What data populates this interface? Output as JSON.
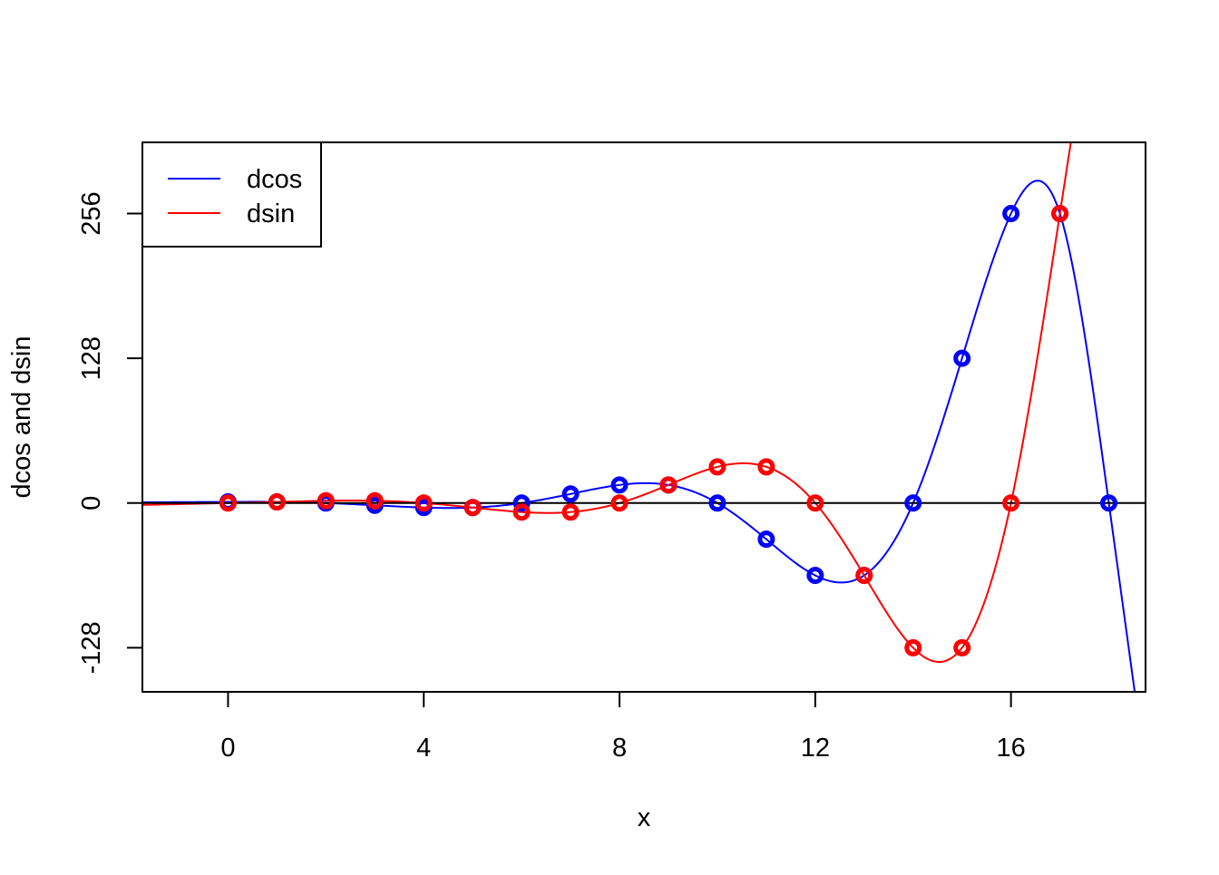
{
  "chart_data": {
    "type": "line",
    "title": "",
    "xlabel": "x",
    "ylabel": "dcos and dsin",
    "xlim": [
      -1.75,
      18.75
    ],
    "ylim": [
      -167,
      319
    ],
    "x_ticks": [
      "0",
      "4",
      "8",
      "12",
      "16"
    ],
    "x_tick_values": [
      0,
      4,
      8,
      12,
      16
    ],
    "y_ticks": [
      "-128",
      "0",
      "128",
      "256"
    ],
    "y_tick_values": [
      -128,
      0,
      128,
      256
    ],
    "grid": false,
    "hline": 0,
    "legend_position": "top-left",
    "series": [
      {
        "name": "dcos",
        "color": "#0000ff",
        "points": {
          "x": [
            0,
            1,
            2,
            3,
            4,
            5,
            6,
            7,
            8,
            9,
            10,
            11,
            12,
            13,
            14,
            15,
            16,
            17,
            18
          ],
          "y": [
            1,
            1,
            0,
            -2,
            -4,
            -4,
            0,
            8,
            16,
            16,
            0,
            -32,
            -64,
            -64,
            0,
            128,
            256,
            256,
            0
          ]
        }
      },
      {
        "name": "dsin",
        "color": "#ff0000",
        "points": {
          "x": [
            0,
            1,
            2,
            3,
            4,
            5,
            6,
            7,
            8,
            9,
            10,
            11,
            12,
            13,
            14,
            15,
            16,
            17
          ],
          "y": [
            0,
            1,
            2,
            2,
            0,
            -4,
            -8,
            -8,
            0,
            16,
            32,
            32,
            0,
            -64,
            -128,
            -128,
            0,
            256
          ]
        }
      }
    ]
  }
}
